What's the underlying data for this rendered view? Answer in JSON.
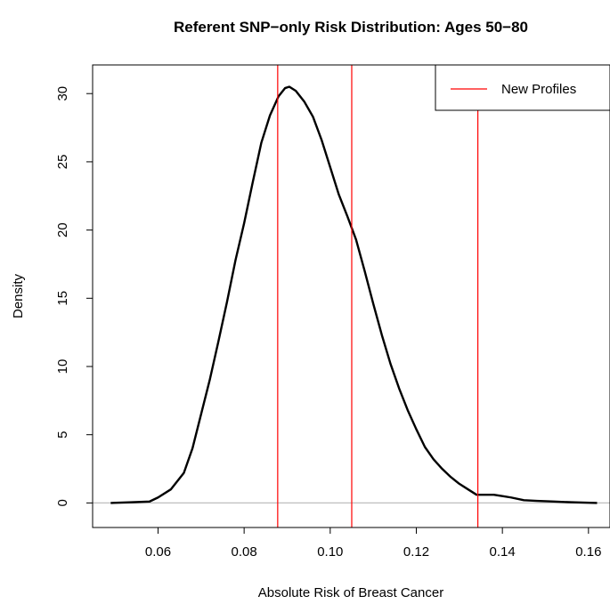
{
  "chart_data": {
    "type": "line",
    "title": "Referent SNP−only Risk Distribution: Ages 50−80",
    "xlabel": "Absolute Risk of Breast Cancer",
    "ylabel": "Density",
    "xlim": [
      0.0448,
      0.165
    ],
    "ylim": [
      -1.8,
      32.1
    ],
    "x_ticks": [
      0.06,
      0.08,
      0.1,
      0.12,
      0.14,
      0.16
    ],
    "x_tick_labels": [
      "0.06",
      "0.08",
      "0.10",
      "0.12",
      "0.14",
      "0.16"
    ],
    "y_ticks": [
      0,
      5,
      10,
      15,
      20,
      25,
      30
    ],
    "y_tick_labels": [
      "0",
      "5",
      "10",
      "15",
      "20",
      "25",
      "30"
    ],
    "grid": false,
    "baseline": {
      "y": 0,
      "color": "#bebebe"
    },
    "series": [
      {
        "color": "#000000",
        "x": [
          0.049,
          0.054,
          0.058,
          0.06,
          0.063,
          0.066,
          0.068,
          0.07,
          0.072,
          0.074,
          0.076,
          0.078,
          0.08,
          0.082,
          0.084,
          0.086,
          0.088,
          0.0895,
          0.0905,
          0.092,
          0.094,
          0.096,
          0.098,
          0.1,
          0.102,
          0.104,
          0.106,
          0.108,
          0.11,
          0.112,
          0.114,
          0.116,
          0.118,
          0.12,
          0.122,
          0.124,
          0.126,
          0.128,
          0.13,
          0.132,
          0.134,
          0.136,
          0.138,
          0.14,
          0.142,
          0.145,
          0.148,
          0.152,
          0.156,
          0.162
        ],
        "y": [
          0.0,
          0.05,
          0.1,
          0.4,
          1.0,
          2.2,
          4.0,
          6.5,
          9.0,
          11.8,
          14.7,
          17.8,
          20.5,
          23.5,
          26.4,
          28.4,
          29.8,
          30.4,
          30.5,
          30.2,
          29.4,
          28.3,
          26.6,
          24.6,
          22.6,
          21.0,
          19.3,
          17.0,
          14.6,
          12.3,
          10.2,
          8.4,
          6.8,
          5.4,
          4.1,
          3.2,
          2.5,
          1.9,
          1.4,
          1.0,
          0.6,
          0.6,
          0.6,
          0.5,
          0.4,
          0.2,
          0.15,
          0.1,
          0.05,
          0.0
        ]
      }
    ],
    "vlines": {
      "color": "#ff0000",
      "x": [
        0.0878,
        0.105,
        0.1343
      ]
    },
    "legend": {
      "placement": "top-right",
      "entries": [
        {
          "label": "New Profiles",
          "color": "#ff0000"
        }
      ]
    }
  }
}
